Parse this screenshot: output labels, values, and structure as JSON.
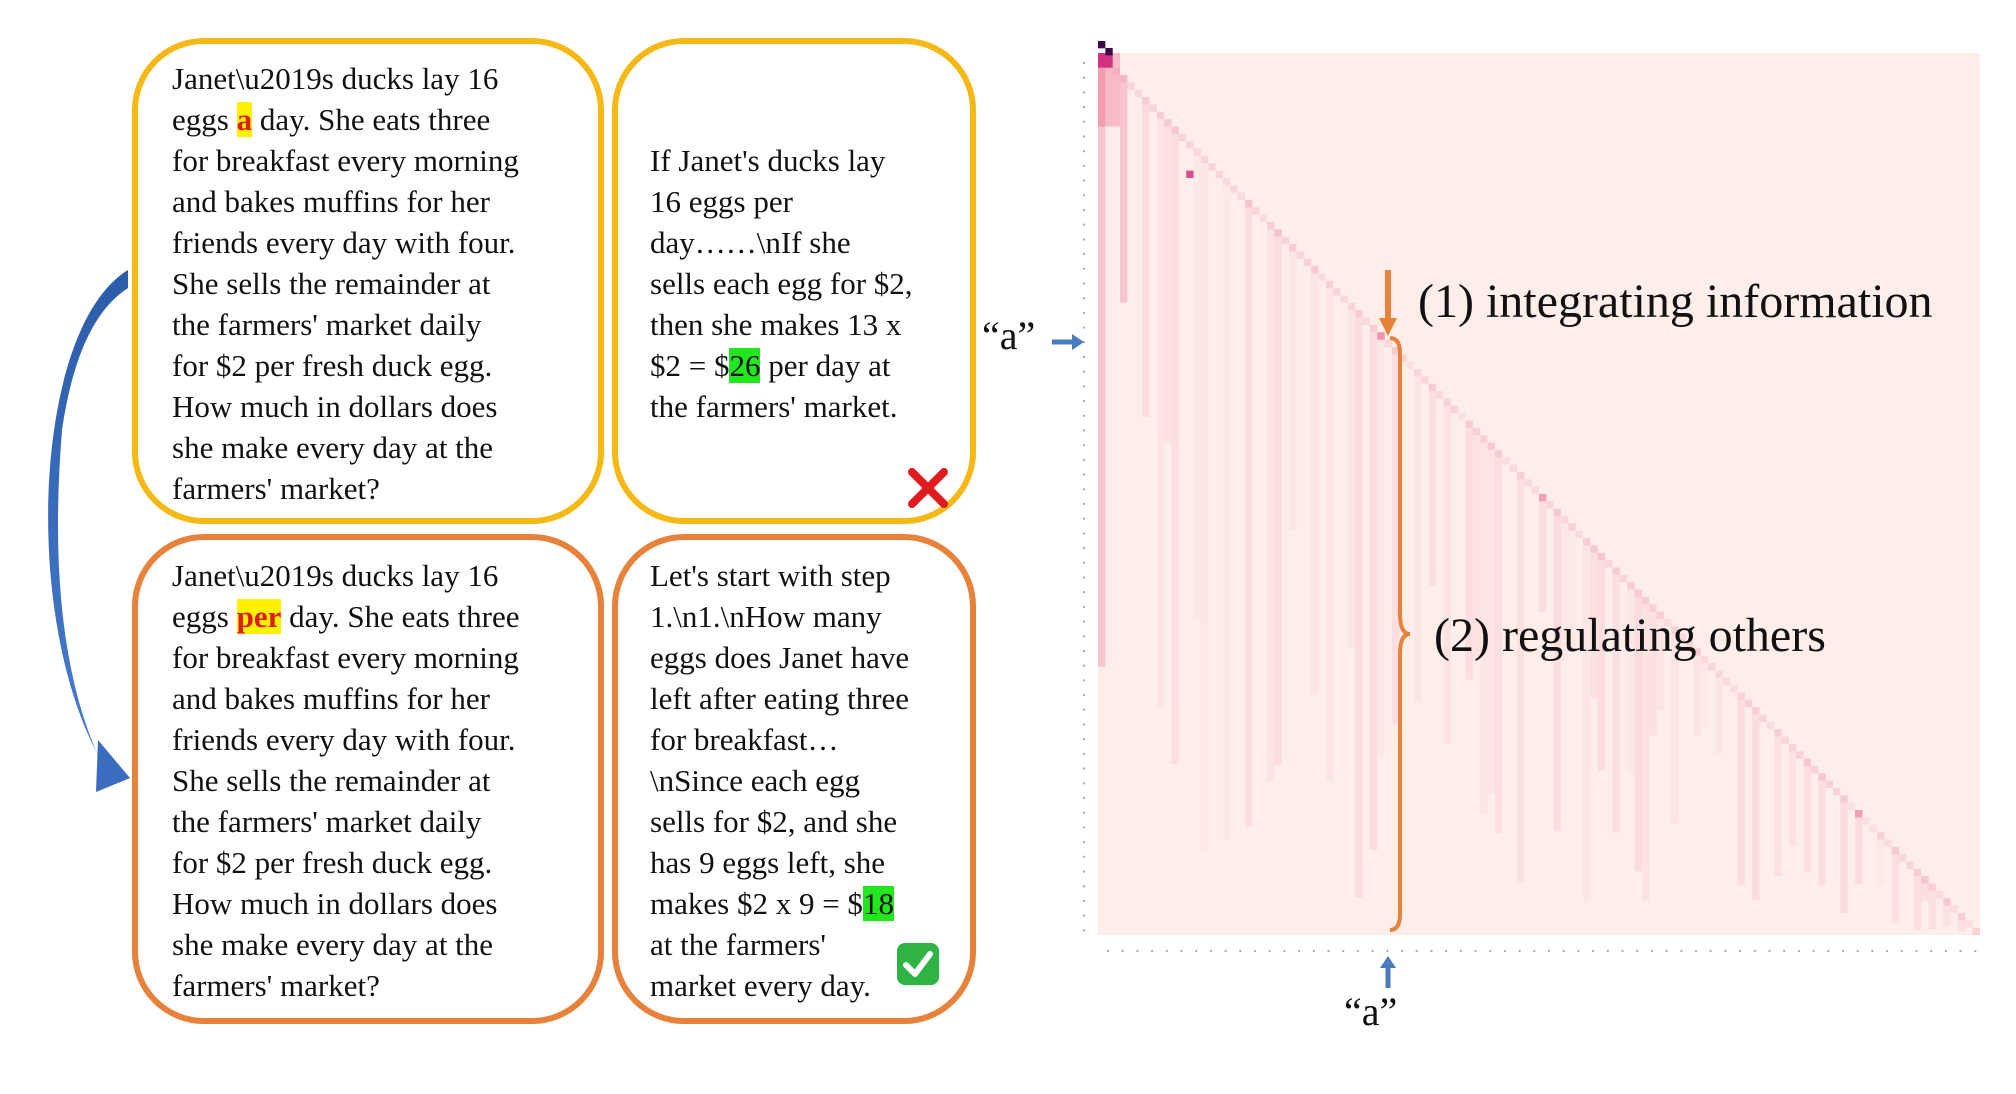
{
  "panels": {
    "top_question": {
      "before": "Janet\\u2019s ducks lay 16\neggs ",
      "word": "a",
      "after": " day. She eats three\nfor breakfast every morning\nand bakes muffins for her\nfriends every day with four.\nShe sells the remainder at\nthe farmers' market daily\nfor $2 per fresh duck egg.\nHow much in dollars does\nshe make every day at the\nfarmers' market?"
    },
    "top_answer": {
      "before": "If Janet's ducks lay\n16 eggs per\nday……\\nIf she\nsells each egg for $2,\nthen she makes 13 x\n$2 = $",
      "value": "26",
      "after": " per day at\nthe farmers' market.",
      "result_icon": "red-cross-icon"
    },
    "bottom_question": {
      "before": "Janet\\u2019s ducks lay 16\neggs ",
      "word": "per",
      "after": " day. She eats three\nfor breakfast every morning\nand bakes muffins for her\nfriends every day with four.\nShe sells the remainder at\nthe farmers' market daily\nfor $2 per fresh duck egg.\nHow much in dollars does\nshe make every day at the\nfarmers' market?"
    },
    "bottom_answer": {
      "before": "Let's start with step\n1.\\n1.\\nHow many\neggs does Janet have\nleft after eating three\nfor breakfast…\n\\nSince each egg\nsells for $2, and she\nhas 9 eggs left, she\nmakes $2 x 9 = $",
      "value": "18",
      "after": "\nat the farmers'\nmarket every day.",
      "result_icon": "green-check-icon"
    }
  },
  "heatmap": {
    "row_marker": "“a”",
    "col_marker": "“a”",
    "annotation_1": "(1)  integrating information",
    "annotation_2": "(2)  regulating others",
    "colors": {
      "cell": "#ee5a82",
      "hot": "#d0257a",
      "peak": "#3a0a4a",
      "background": "#fdeeea",
      "bracket": "#e8823a",
      "marker_arrow": "#4a7ac0"
    }
  }
}
